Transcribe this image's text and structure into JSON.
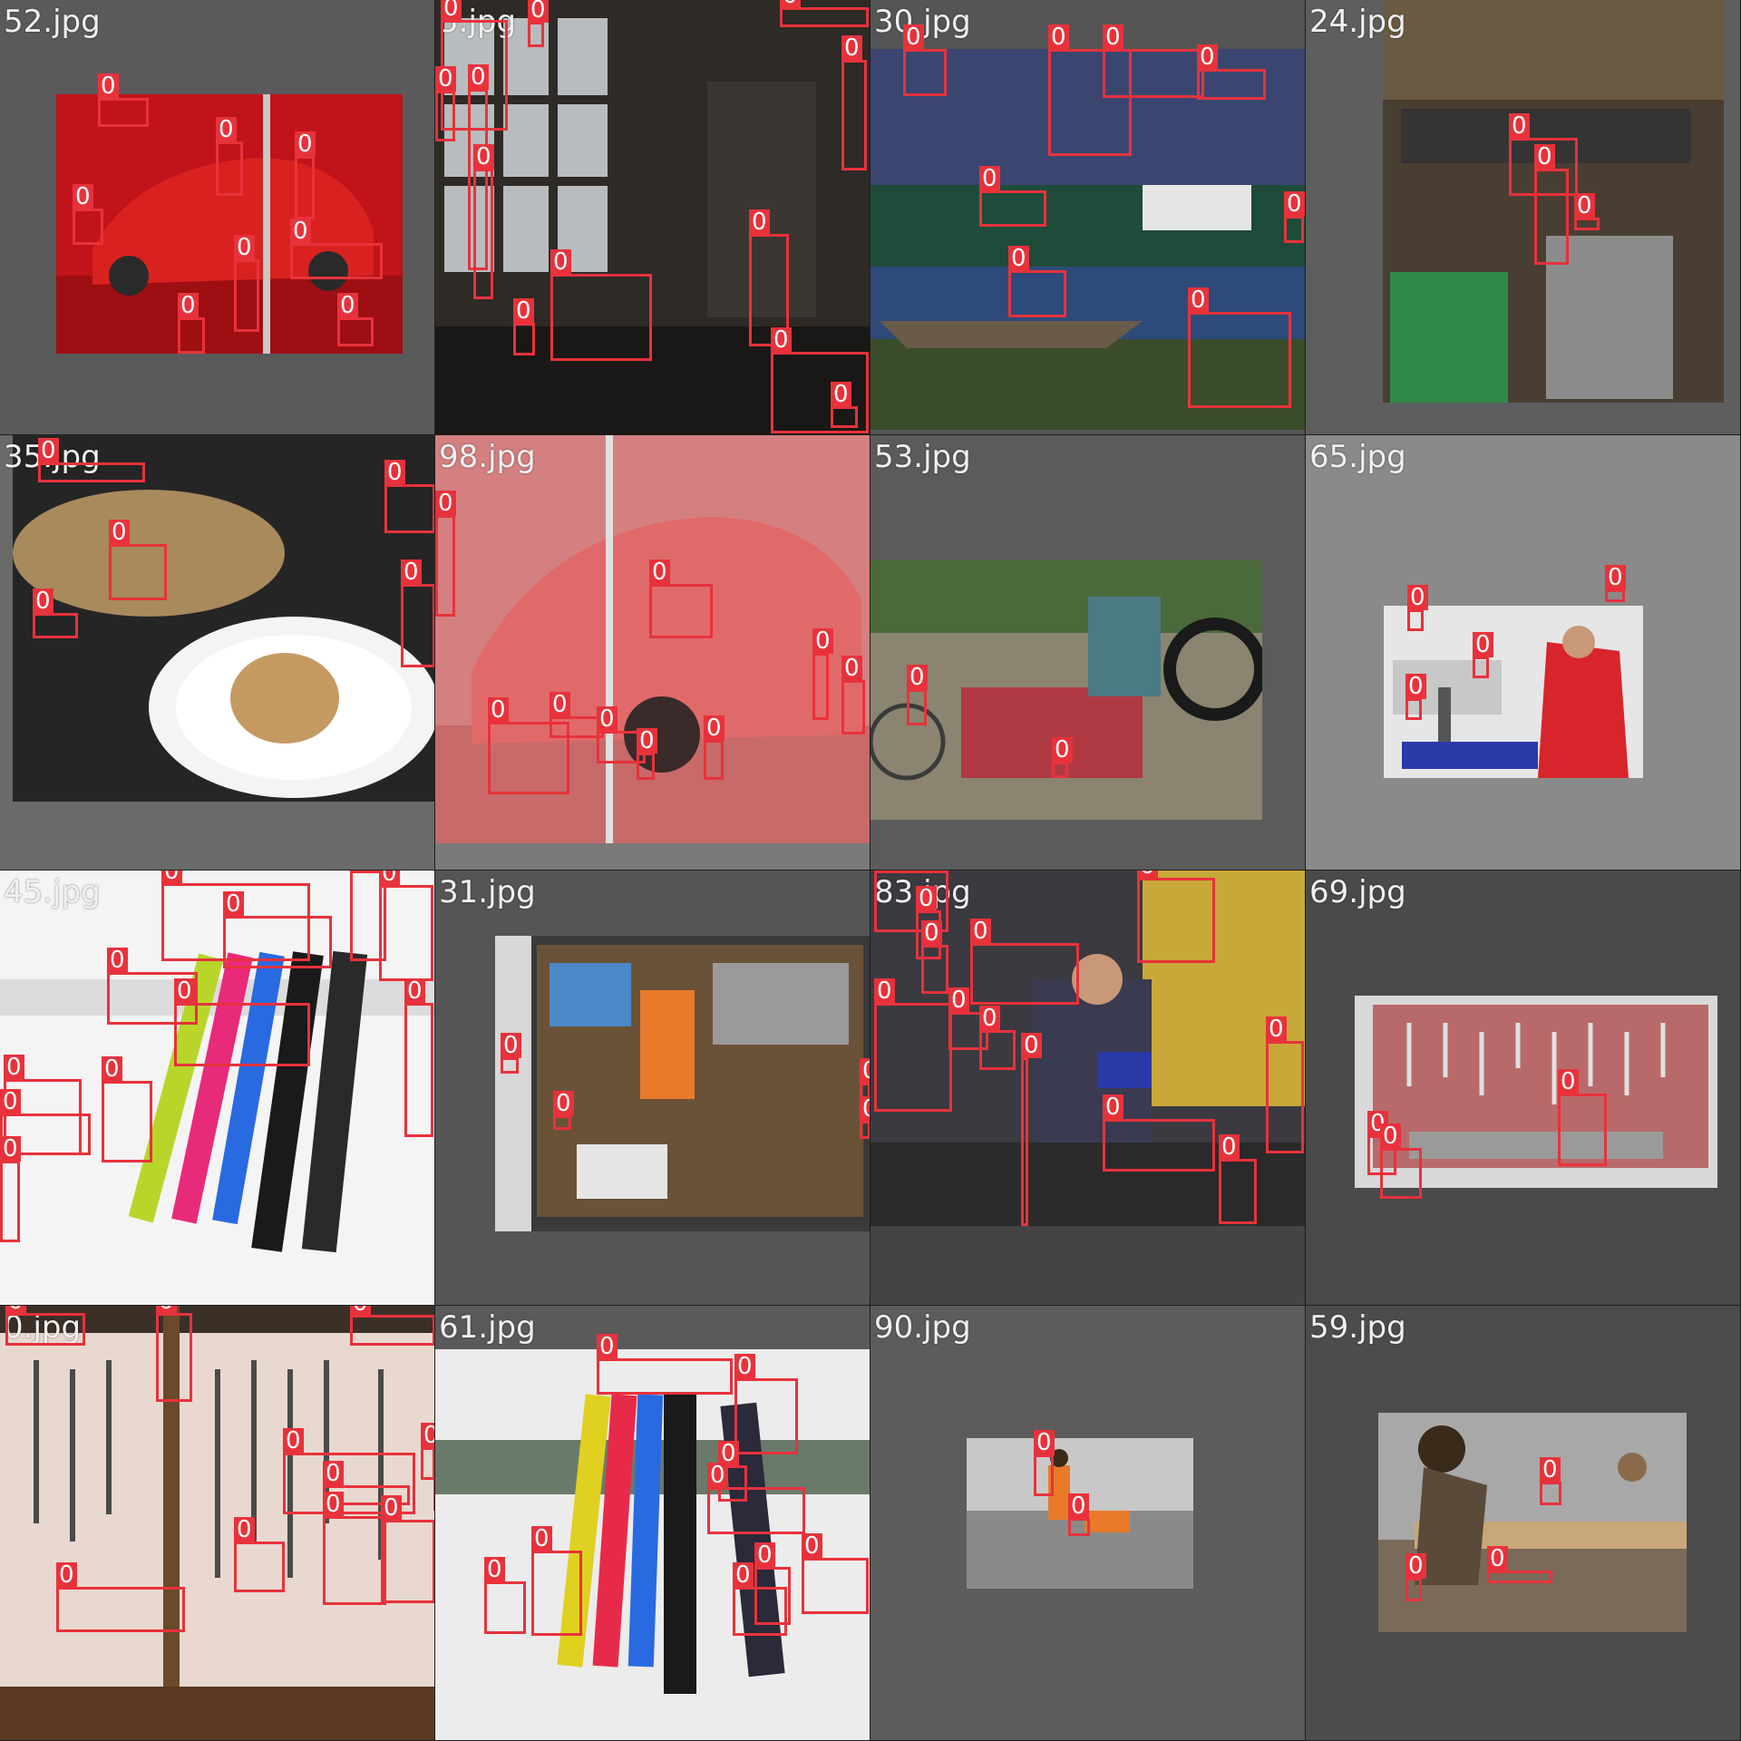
{
  "class_label": "0",
  "colors": {
    "box": "#e8323b",
    "label_text": "#ffffff",
    "filename_text": "#f0f0f0"
  },
  "tiles": [
    {
      "filename": "52.jpg",
      "bg": "#5a5a5a",
      "scene": "red-race-car-garage"
    },
    {
      "filename": "5.jpg",
      "bg": "#3a3a3a",
      "scene": "dark-workshop"
    },
    {
      "filename": "30.jpg",
      "bg": "#555555",
      "scene": "river-boats"
    },
    {
      "filename": "24.jpg",
      "bg": "#5e5e5e",
      "scene": "crowded-tool-shop"
    },
    {
      "filename": "35.jpg",
      "bg": "#6a6a6a",
      "scene": "food-tray-cookie"
    },
    {
      "filename": "98.jpg",
      "bg": "#7a7a7a",
      "scene": "pink-race-car"
    },
    {
      "filename": "53.jpg",
      "bg": "#5b5b5b",
      "scene": "bike-repair-street"
    },
    {
      "filename": "65.jpg",
      "bg": "#8a8a8a",
      "scene": "student-red-shirt-workbench"
    },
    {
      "filename": "45.jpg",
      "bg": "#f2f2f2",
      "scene": "snowboards-in-snow"
    },
    {
      "filename": "31.jpg",
      "bg": "#555555",
      "scene": "tool-drawer"
    },
    {
      "filename": "83.jpg",
      "bg": "#444444",
      "scene": "welder-workshop"
    },
    {
      "filename": "69.jpg",
      "bg": "#4a4a4a",
      "scene": "pegboard-wall"
    },
    {
      "filename": "0.jpg",
      "bg": "#3f3a35",
      "scene": "hanging-hand-tools"
    },
    {
      "filename": "61.jpg",
      "bg": "#5a5a5a",
      "scene": "snowboards-rack"
    },
    {
      "filename": "90.jpg",
      "bg": "#5c5c5c",
      "scene": "worker-construction-site"
    },
    {
      "filename": "59.jpg",
      "bg": "#4c4c4c",
      "scene": "carpenters-outdoor"
    }
  ]
}
